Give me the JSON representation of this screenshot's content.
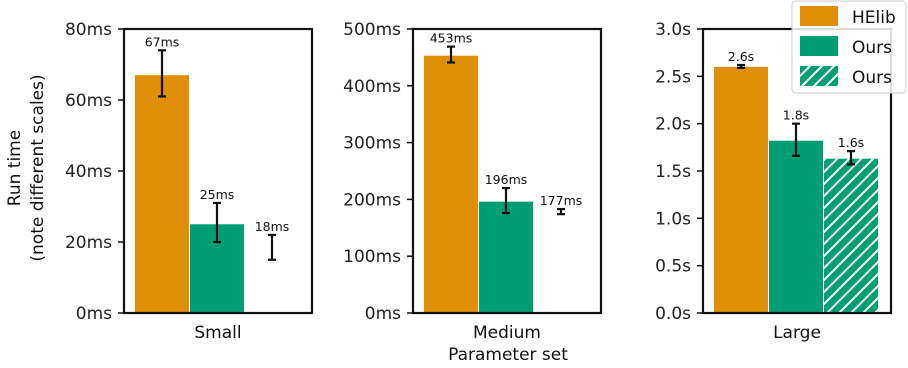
{
  "chart_data": {
    "type": "bar",
    "ylabel_lines": [
      "Run time",
      "(note different scales)"
    ],
    "xlabel": "Parameter set",
    "colors": {
      "HElib": "#de8f05",
      "Ours": "#029e73",
      "Ours_hatched": "#029e73"
    },
    "legend": {
      "placement": "top-right",
      "entries": [
        {
          "label": "HElib",
          "color": "#de8f05",
          "hatch": false
        },
        {
          "label": "Ours",
          "color": "#029e73",
          "hatch": false
        },
        {
          "label": "Ours",
          "color": "#029e73",
          "hatch": true
        }
      ]
    },
    "panels": [
      {
        "category": "Small",
        "unit": "ms",
        "ylim": [
          0,
          80
        ],
        "yticks": [
          0,
          20,
          40,
          60,
          80
        ],
        "ytick_labels": [
          "0ms",
          "20ms",
          "40ms",
          "60ms",
          "80ms"
        ],
        "series": [
          {
            "name": "HElib",
            "value": 67,
            "err": [
              61,
              74
            ],
            "label": "67ms",
            "hatch": false,
            "visible_bar": true
          },
          {
            "name": "Ours",
            "value": 25,
            "err": [
              20,
              31
            ],
            "label": "25ms",
            "hatch": false,
            "visible_bar": true
          },
          {
            "name": "Ours",
            "value": 18,
            "err": [
              15,
              22
            ],
            "label": "18ms",
            "hatch": true,
            "visible_bar": false
          }
        ]
      },
      {
        "category": "Medium",
        "unit": "ms",
        "ylim": [
          0,
          500
        ],
        "yticks": [
          0,
          100,
          200,
          300,
          400,
          500
        ],
        "ytick_labels": [
          "0ms",
          "100ms",
          "200ms",
          "300ms",
          "400ms",
          "500ms"
        ],
        "series": [
          {
            "name": "HElib",
            "value": 453,
            "err": [
              441,
              469
            ],
            "label": "453ms",
            "hatch": false,
            "visible_bar": true
          },
          {
            "name": "Ours",
            "value": 196,
            "err": [
              176,
              220
            ],
            "label": "196ms",
            "hatch": false,
            "visible_bar": true
          },
          {
            "name": "Ours",
            "value": 177,
            "err": [
              174,
              183
            ],
            "label": "177ms",
            "hatch": true,
            "visible_bar": false
          }
        ]
      },
      {
        "category": "Large",
        "unit": "s",
        "ylim": [
          0,
          3.0
        ],
        "yticks": [
          0,
          0.5,
          1.0,
          1.5,
          2.0,
          2.5,
          3.0
        ],
        "ytick_labels": [
          "0.0s",
          "0.5s",
          "1.0s",
          "1.5s",
          "2.0s",
          "2.5s",
          "3.0s"
        ],
        "series": [
          {
            "name": "HElib",
            "value": 2.6,
            "err": [
              2.59,
              2.62
            ],
            "label": "2.6s",
            "hatch": false,
            "visible_bar": true
          },
          {
            "name": "Ours",
            "value": 1.82,
            "err": [
              1.66,
              2.0
            ],
            "label": "1.8s",
            "hatch": false,
            "visible_bar": true
          },
          {
            "name": "Ours",
            "value": 1.63,
            "err": [
              1.57,
              1.71
            ],
            "label": "1.6s",
            "hatch": true,
            "visible_bar": true
          }
        ]
      }
    ]
  }
}
